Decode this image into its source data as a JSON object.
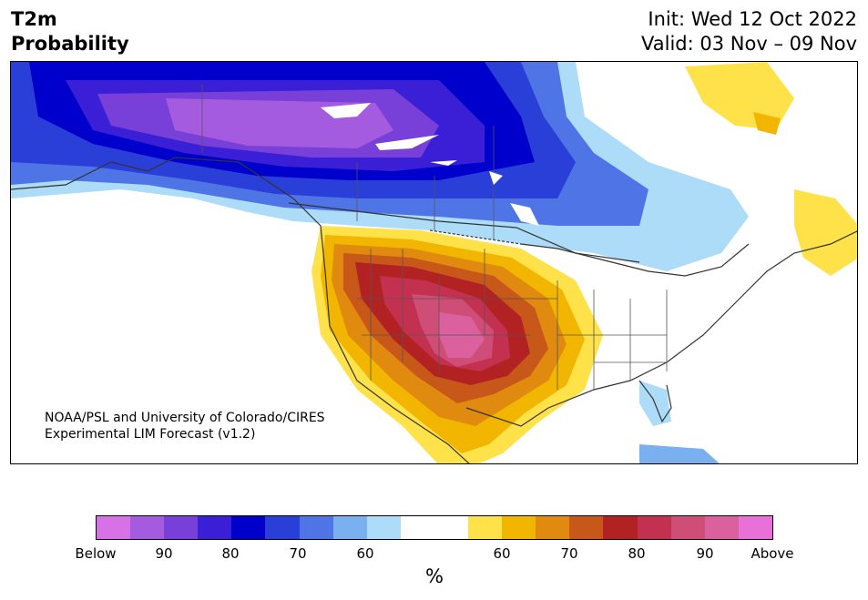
{
  "header": {
    "title_line1": "T2m",
    "title_line2": "Probability",
    "init": "Init: Wed 12 Oct 2022",
    "valid": "Valid: 03 Nov – 09 Nov"
  },
  "credit": {
    "line1": "NOAA/PSL and University of Colorado/CIRES",
    "line2": "Experimental LIM Forecast (v1.2)"
  },
  "colorbar": {
    "colors": [
      "#d672e6",
      "#a55be0",
      "#7840d8",
      "#3a1fd6",
      "#0000cc",
      "#2a3ed8",
      "#4f74e6",
      "#7aaff0",
      "#acdcf8",
      "#ffffff",
      "#ffffff",
      "#ffe14a",
      "#f2b600",
      "#e08a10",
      "#c8571a",
      "#b22222",
      "#c43050",
      "#cf4e78",
      "#db609e",
      "#e870d8"
    ],
    "ticks": [
      "Below",
      "90",
      "80",
      "70",
      "60",
      "60",
      "70",
      "80",
      "90",
      "Above"
    ],
    "unit": "%"
  }
}
